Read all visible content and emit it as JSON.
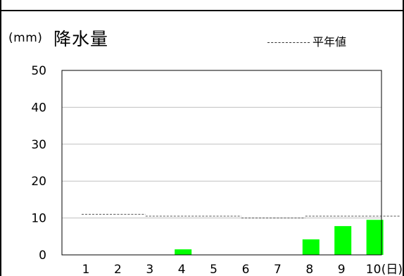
{
  "chart_data": {
    "type": "bar",
    "title": "降水量",
    "unit_label": "(mm)",
    "legend_label": "平年値",
    "x_unit_label": "(日)",
    "categories": [
      "1",
      "2",
      "3",
      "4",
      "5",
      "6",
      "7",
      "8",
      "9",
      "10"
    ],
    "series": [
      {
        "values": [
          0,
          0,
          0,
          1.5,
          0,
          0,
          0,
          4.2,
          7.8,
          9.5
        ]
      }
    ],
    "normal_line": [
      11,
      11,
      10.5,
      10.5,
      10.5,
      10,
      10,
      10.5,
      10.5,
      10.5
    ],
    "ylim": [
      0,
      50
    ],
    "yticks": [
      "0",
      "10",
      "20",
      "30",
      "40",
      "50"
    ],
    "grid": true,
    "legend_position": "top-right",
    "colors": {
      "bar": "#00ff00",
      "normal_line": "#555555",
      "grid": "#c0c0c0"
    }
  }
}
